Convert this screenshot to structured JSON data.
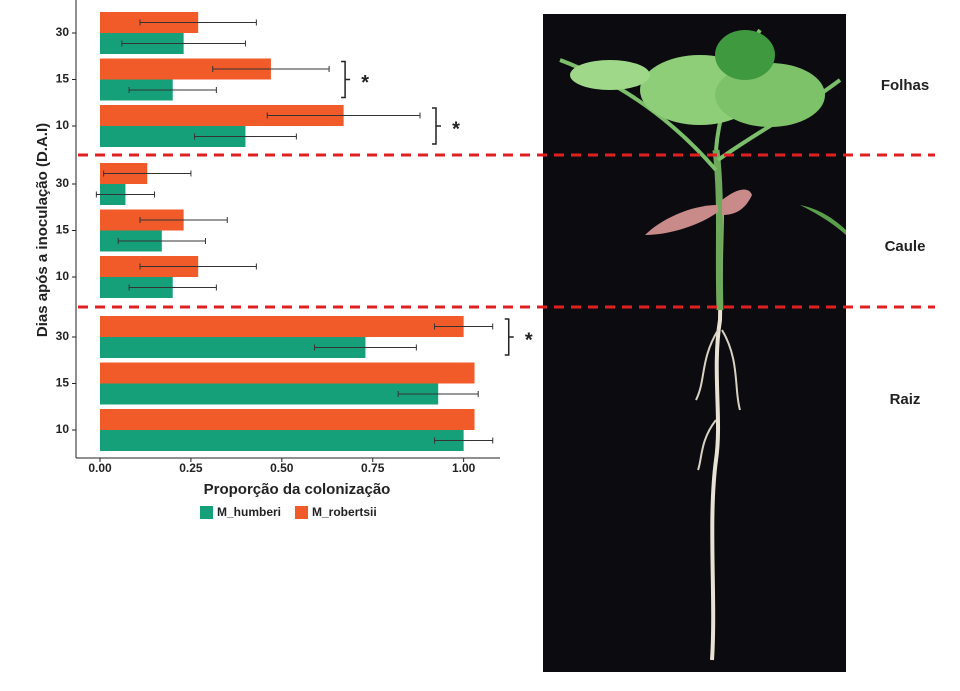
{
  "chart_data": {
    "type": "bar",
    "orientation": "horizontal",
    "y_label": "Dias após a inoculação (D.A.I)",
    "x_label": "Proporção da colonização",
    "categories": [
      "30",
      "15",
      "10",
      "30",
      "15",
      "10",
      "30",
      "15",
      "10"
    ],
    "sections": [
      "Folhas",
      "Caule",
      "Raiz"
    ],
    "series": [
      {
        "name": "M_humberi",
        "color": "#16a07a",
        "values": [
          0.23,
          0.2,
          0.4,
          0.07,
          0.17,
          0.2,
          0.73,
          0.93,
          1.0
        ],
        "errors": [
          0.17,
          0.12,
          0.14,
          0.08,
          0.12,
          0.12,
          0.14,
          0.11,
          0.08
        ]
      },
      {
        "name": "M_robertsii",
        "color": "#f15a29",
        "values": [
          0.27,
          0.47,
          0.67,
          0.13,
          0.23,
          0.27,
          1.0,
          1.03,
          1.03
        ],
        "errors": [
          0.16,
          0.16,
          0.21,
          0.12,
          0.12,
          0.16,
          0.08,
          null,
          null
        ]
      }
    ],
    "annotations": [
      {
        "category": 1,
        "text": "*"
      },
      {
        "category": 2,
        "text": "*"
      },
      {
        "category": 6,
        "text": "*"
      }
    ],
    "xlim": [
      -0.066,
      1.1
    ],
    "xticks": [
      {
        "value": 0,
        "label": "0.00"
      },
      {
        "value": 0.25,
        "label": "0.25"
      },
      {
        "value": 0.5,
        "label": "0.50"
      },
      {
        "value": 0.75,
        "label": "0.75"
      },
      {
        "value": 1,
        "label": "1.00"
      }
    ],
    "grid": false,
    "legend": "bottom"
  }
}
